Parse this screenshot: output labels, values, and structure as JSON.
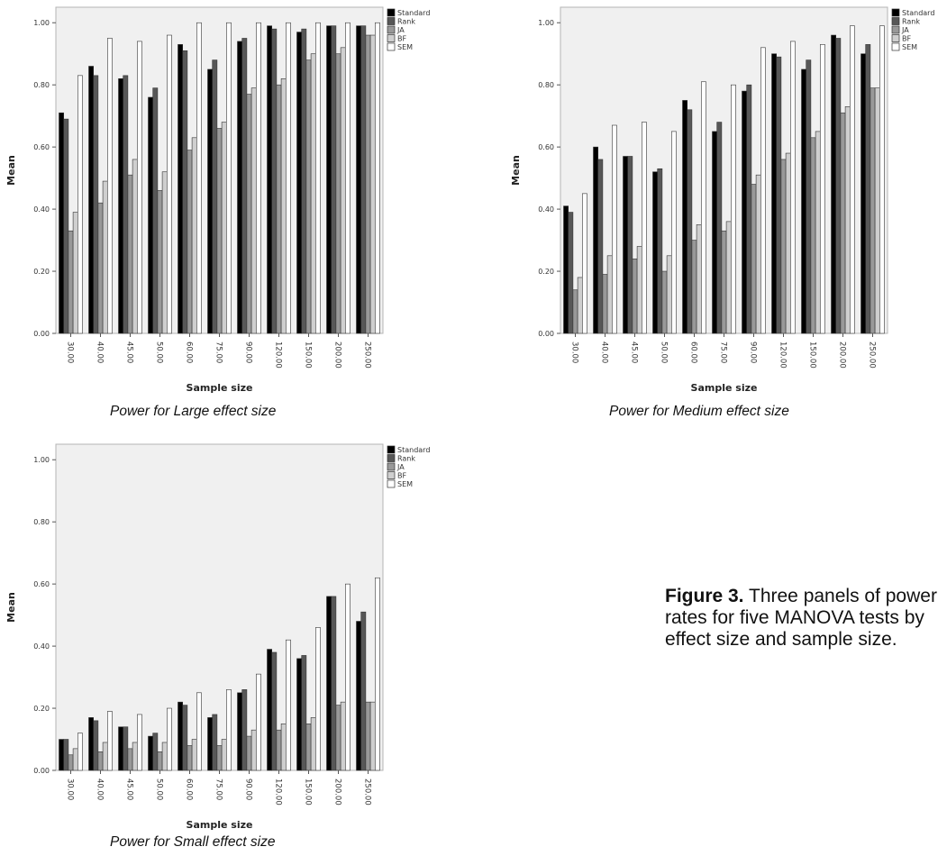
{
  "figure_caption": {
    "label": "Figure 3.",
    "text": "Three panels of power rates for five MANOVA tests by effect size and sample size."
  },
  "chart_data": [
    {
      "type": "bar",
      "caption": "Power for Large effect size",
      "xlabel": "Sample size",
      "ylabel": "Mean",
      "ylim": [
        0,
        1.05
      ],
      "yticks": [
        "0.00",
        "0.20",
        "0.40",
        "0.60",
        "0.80",
        "1.00"
      ],
      "legend_position": "top-right",
      "categories": [
        "30.00",
        "40.00",
        "45.00",
        "50.00",
        "60.00",
        "75.00",
        "90.00",
        "120.00",
        "150.00",
        "200.00",
        "250.00"
      ],
      "series": [
        {
          "name": "Standard",
          "color": "#000000",
          "values": [
            0.71,
            0.86,
            0.82,
            0.76,
            0.93,
            0.85,
            0.94,
            0.99,
            0.97,
            0.99,
            0.99
          ]
        },
        {
          "name": "Rank",
          "color": "#575757",
          "values": [
            0.69,
            0.83,
            0.83,
            0.79,
            0.91,
            0.88,
            0.95,
            0.98,
            0.98,
            0.99,
            0.99
          ]
        },
        {
          "name": "JA",
          "color": "#999999",
          "values": [
            0.33,
            0.42,
            0.51,
            0.46,
            0.59,
            0.66,
            0.77,
            0.8,
            0.88,
            0.9,
            0.96
          ]
        },
        {
          "name": "BF",
          "color": "#cfcfcf",
          "values": [
            0.39,
            0.49,
            0.56,
            0.52,
            0.63,
            0.68,
            0.79,
            0.82,
            0.9,
            0.92,
            0.96
          ]
        },
        {
          "name": "SEM",
          "color": "#ffffff",
          "values": [
            0.83,
            0.95,
            0.94,
            0.96,
            1.0,
            1.0,
            1.0,
            1.0,
            1.0,
            1.0,
            1.0
          ]
        }
      ]
    },
    {
      "type": "bar",
      "caption": "Power for Medium effect size",
      "xlabel": "Sample size",
      "ylabel": "Mean",
      "ylim": [
        0,
        1.05
      ],
      "yticks": [
        "0.00",
        "0.20",
        "0.40",
        "0.60",
        "0.80",
        "1.00"
      ],
      "legend_position": "top-right",
      "categories": [
        "30.00",
        "40.00",
        "45.00",
        "50.00",
        "60.00",
        "75.00",
        "90.00",
        "120.00",
        "150.00",
        "200.00",
        "250.00"
      ],
      "series": [
        {
          "name": "Standard",
          "color": "#000000",
          "values": [
            0.41,
            0.6,
            0.57,
            0.52,
            0.75,
            0.65,
            0.78,
            0.9,
            0.85,
            0.96,
            0.9
          ]
        },
        {
          "name": "Rank",
          "color": "#575757",
          "values": [
            0.39,
            0.56,
            0.57,
            0.53,
            0.72,
            0.68,
            0.8,
            0.89,
            0.88,
            0.95,
            0.93
          ]
        },
        {
          "name": "JA",
          "color": "#999999",
          "values": [
            0.14,
            0.19,
            0.24,
            0.2,
            0.3,
            0.33,
            0.48,
            0.56,
            0.63,
            0.71,
            0.79
          ]
        },
        {
          "name": "BF",
          "color": "#cfcfcf",
          "values": [
            0.18,
            0.25,
            0.28,
            0.25,
            0.35,
            0.36,
            0.51,
            0.58,
            0.65,
            0.73,
            0.79
          ]
        },
        {
          "name": "SEM",
          "color": "#ffffff",
          "values": [
            0.45,
            0.67,
            0.68,
            0.65,
            0.81,
            0.8,
            0.92,
            0.94,
            0.93,
            0.99,
            0.99
          ]
        }
      ]
    },
    {
      "type": "bar",
      "caption": "Power for Small effect size",
      "xlabel": "Sample size",
      "ylabel": "Mean",
      "ylim": [
        0,
        1.05
      ],
      "yticks": [
        "0.00",
        "0.20",
        "0.40",
        "0.60",
        "0.80",
        "1.00"
      ],
      "legend_position": "top-right",
      "categories": [
        "30.00",
        "40.00",
        "45.00",
        "50.00",
        "60.00",
        "75.00",
        "90.00",
        "120.00",
        "150.00",
        "200.00",
        "250.00"
      ],
      "series": [
        {
          "name": "Standard",
          "color": "#000000",
          "values": [
            0.1,
            0.17,
            0.14,
            0.11,
            0.22,
            0.17,
            0.25,
            0.39,
            0.36,
            0.56,
            0.48
          ]
        },
        {
          "name": "Rank",
          "color": "#575757",
          "values": [
            0.1,
            0.16,
            0.14,
            0.12,
            0.21,
            0.18,
            0.26,
            0.38,
            0.37,
            0.56,
            0.51
          ]
        },
        {
          "name": "JA",
          "color": "#999999",
          "values": [
            0.05,
            0.06,
            0.07,
            0.06,
            0.08,
            0.08,
            0.11,
            0.13,
            0.15,
            0.21,
            0.22
          ]
        },
        {
          "name": "BF",
          "color": "#cfcfcf",
          "values": [
            0.07,
            0.09,
            0.09,
            0.09,
            0.1,
            0.1,
            0.13,
            0.15,
            0.17,
            0.22,
            0.22
          ]
        },
        {
          "name": "SEM",
          "color": "#ffffff",
          "values": [
            0.12,
            0.19,
            0.18,
            0.2,
            0.25,
            0.26,
            0.31,
            0.42,
            0.46,
            0.6,
            0.62
          ]
        }
      ]
    }
  ]
}
